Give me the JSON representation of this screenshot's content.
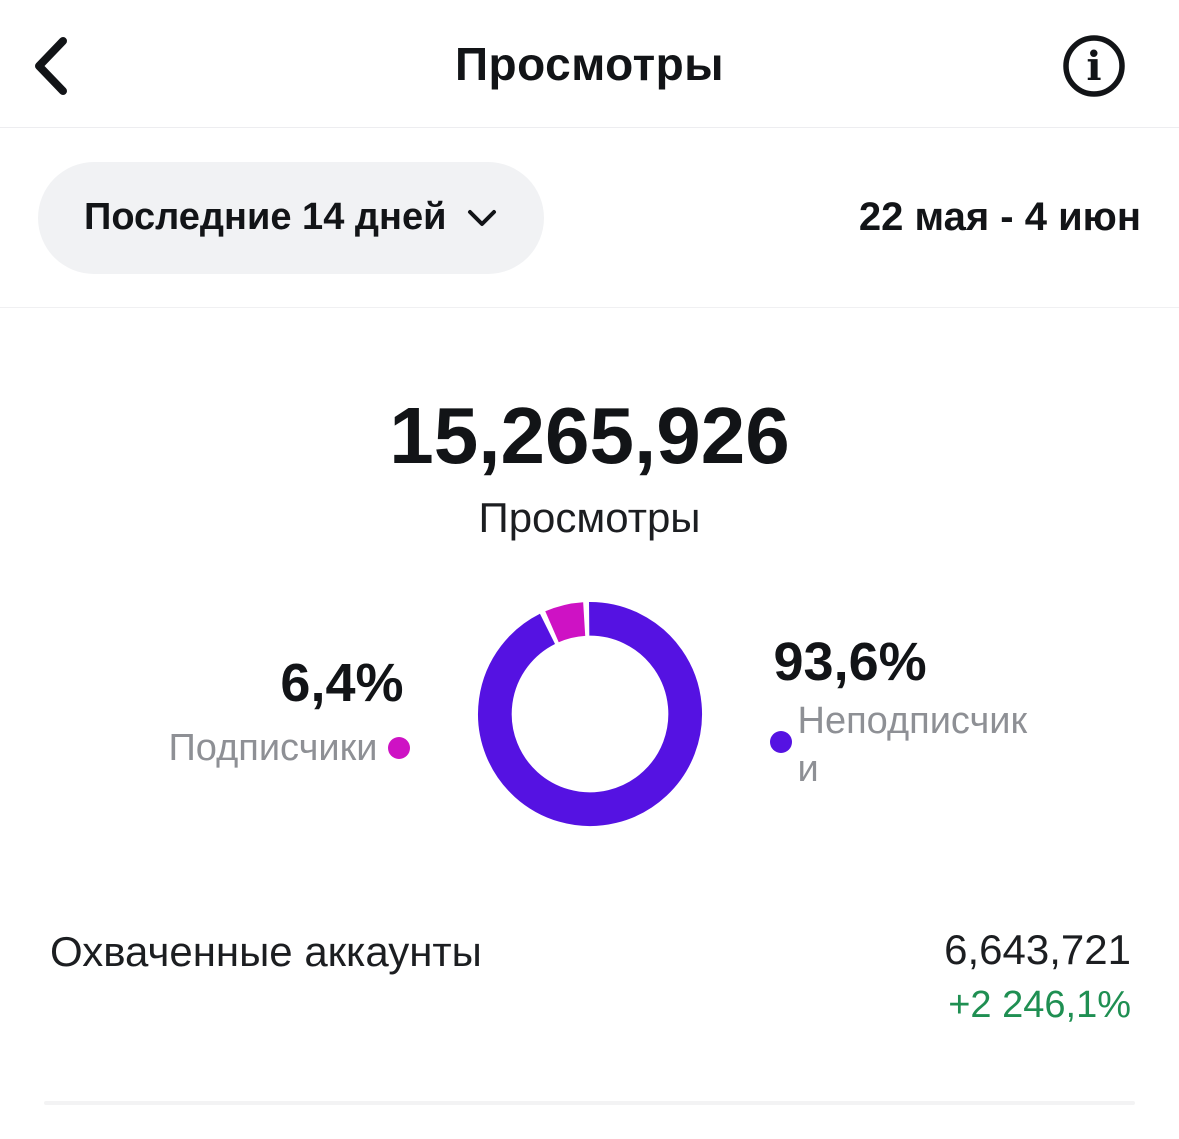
{
  "header": {
    "title": "Просмотры"
  },
  "filter": {
    "range_label": "Последние 14 дней",
    "date_range": "22 мая - 4 июн"
  },
  "summary": {
    "value": "15,265,926",
    "label": "Просмотры"
  },
  "chart_data": {
    "type": "pie",
    "subtype": "donut",
    "title": "Просмотры",
    "total_value": 15265926,
    "total_display": "15,265,926",
    "segments": [
      {
        "label": "Неподписчики",
        "pct": 93.6,
        "color": "#5512E2"
      },
      {
        "label": "Подписчики",
        "pct": 6.4,
        "color": "#CE12C4"
      }
    ],
    "layout": {
      "start_deg": -2,
      "gap_deg": 3,
      "stroke_width": 34,
      "legend_position": "sides"
    }
  },
  "legend": {
    "left": {
      "pct": "6,4%",
      "label": "Подписчики"
    },
    "right": {
      "pct": "93,6%",
      "label": "Неподписчики"
    }
  },
  "reached": {
    "label": "Охваченные аккаунты",
    "value": "6,643,721",
    "delta": "+2 246,1%"
  },
  "colors": {
    "subscribers": "#CE12C4",
    "non_subscribers": "#5512E2",
    "delta_green": "#1F8F52",
    "label_gray": "#8E9095"
  }
}
